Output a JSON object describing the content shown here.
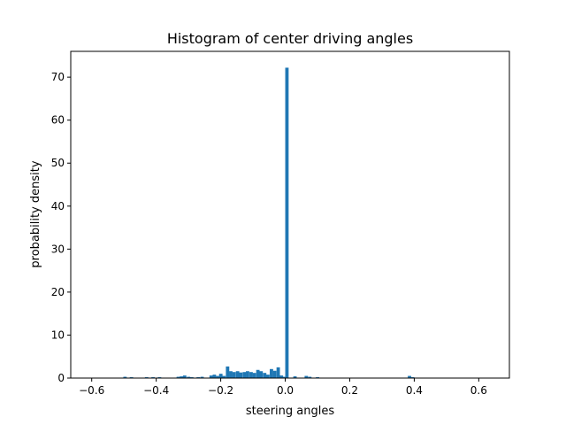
{
  "chart_data": {
    "type": "bar",
    "title": "Histogram of center driving angles",
    "xlabel": "steering angles",
    "ylabel": "probability density",
    "xlim": [
      -0.665,
      0.695
    ],
    "ylim": [
      0,
      76
    ],
    "x_ticks": [
      -0.6,
      -0.4,
      -0.2,
      0.0,
      0.2,
      0.4,
      0.6
    ],
    "x_tick_labels": [
      "−0.6",
      "−0.4",
      "−0.2",
      "0.0",
      "0.2",
      "0.4",
      "0.6"
    ],
    "y_ticks": [
      0,
      10,
      20,
      30,
      40,
      50,
      60,
      70
    ],
    "y_tick_labels": [
      "0",
      "10",
      "20",
      "30",
      "40",
      "50",
      "60",
      "70"
    ],
    "bin_width": 0.0105,
    "bar_color": "#1f77b4",
    "grid": false,
    "legend": "none",
    "bins_x_start": [
      -0.502,
      -0.482,
      -0.435,
      -0.415,
      -0.395,
      -0.337,
      -0.327,
      -0.317,
      -0.305,
      -0.295,
      -0.275,
      -0.263,
      -0.235,
      -0.225,
      -0.215,
      -0.205,
      -0.195,
      -0.184,
      -0.174,
      -0.164,
      -0.153,
      -0.143,
      -0.132,
      -0.122,
      -0.111,
      -0.101,
      -0.09,
      -0.08,
      -0.069,
      -0.059,
      -0.048,
      -0.038,
      -0.027,
      -0.017,
      -0.007,
      0.0,
      0.025,
      0.06,
      0.071,
      0.095,
      0.38,
      0.39,
      0.4
    ],
    "density": [
      0.3,
      0.2,
      0.2,
      0.2,
      0.2,
      0.3,
      0.4,
      0.6,
      0.3,
      0.2,
      0.2,
      0.3,
      0.6,
      0.8,
      0.5,
      1.0,
      0.5,
      2.7,
      1.6,
      1.4,
      1.6,
      1.3,
      1.4,
      1.6,
      1.4,
      1.2,
      1.9,
      1.6,
      1.2,
      0.8,
      2.1,
      1.7,
      2.5,
      0.6,
      0.3,
      72.2,
      0.4,
      0.5,
      0.3,
      0.2,
      0.5,
      0.2,
      0.1
    ]
  }
}
